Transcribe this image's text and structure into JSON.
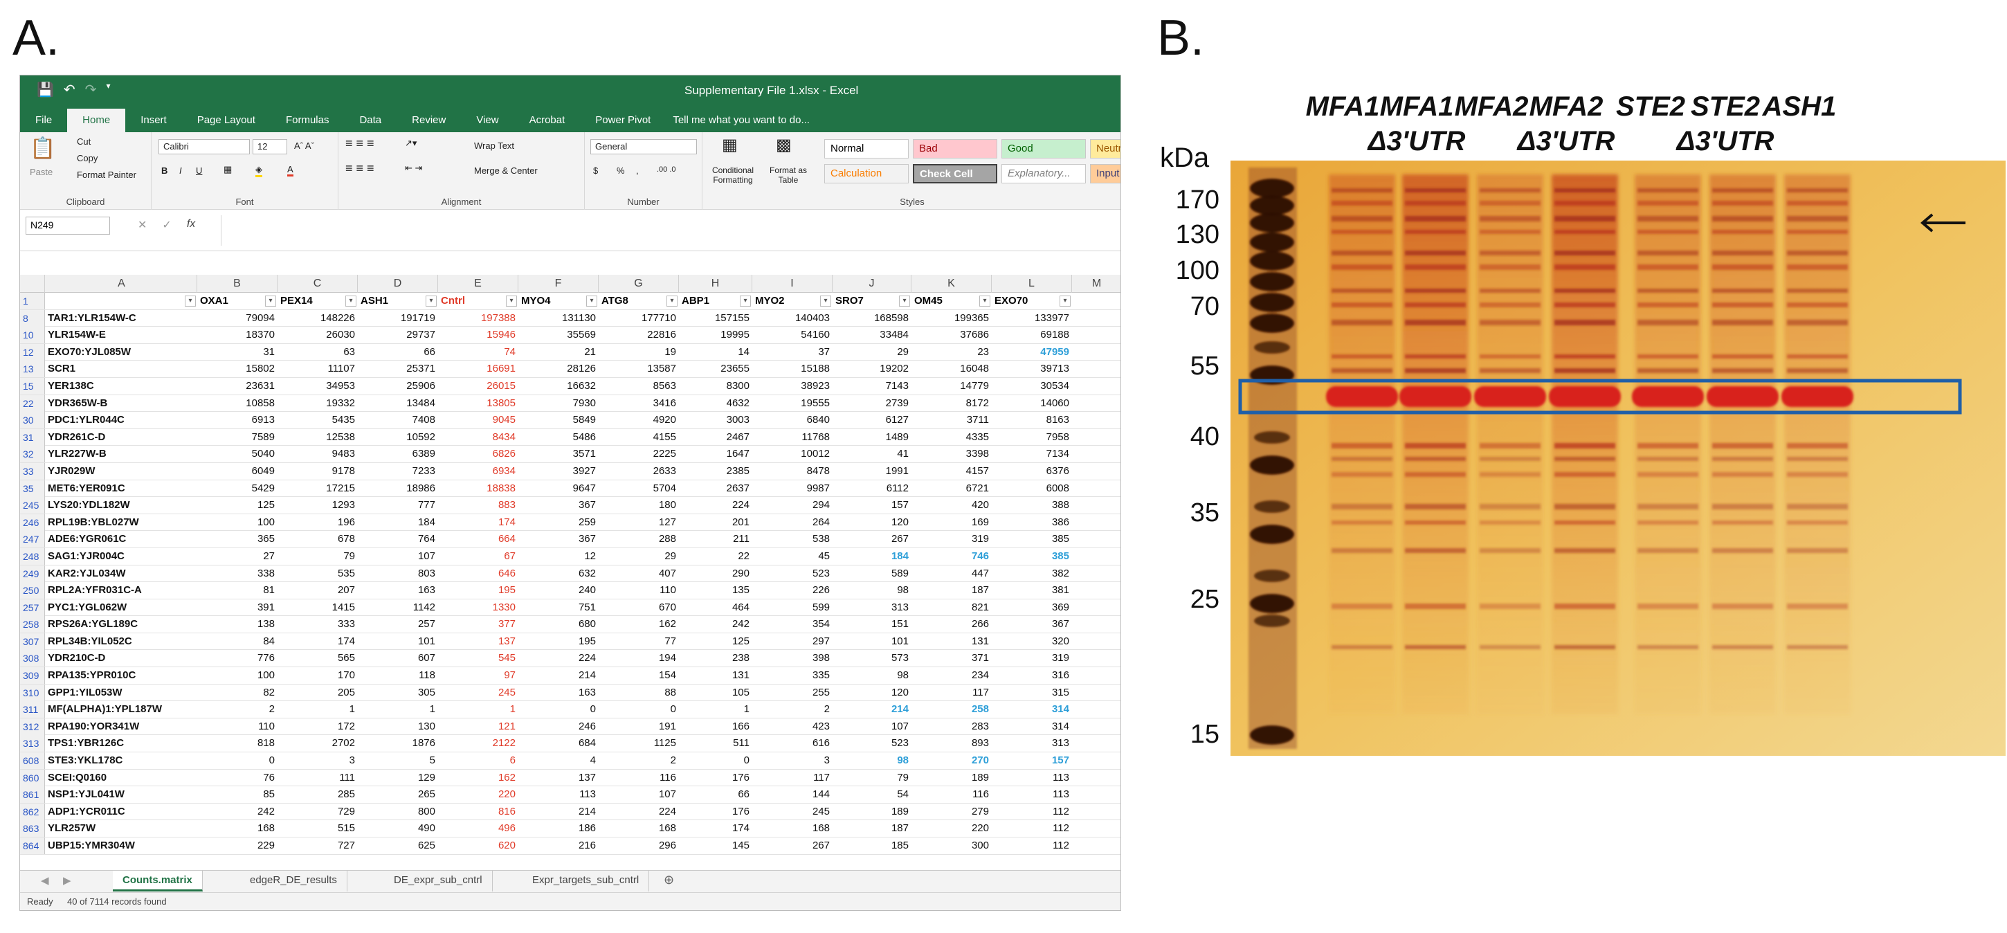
{
  "panels": {
    "a": "A.",
    "b": "B."
  },
  "excel": {
    "title": "Supplementary File 1.xlsx - Excel",
    "qat_icons": [
      "save-icon",
      "undo-icon",
      "redo-icon"
    ],
    "tabs": [
      "File",
      "Home",
      "Insert",
      "Page Layout",
      "Formulas",
      "Data",
      "Review",
      "View",
      "Acrobat",
      "Power Pivot"
    ],
    "tell_me": "Tell me what you want to do...",
    "ribbon": {
      "clipboard": {
        "paste": "Paste",
        "cut": "Cut",
        "copy": "Copy",
        "format_painter": "Format Painter",
        "label": "Clipboard"
      },
      "font": {
        "name": "Calibri",
        "size": "12",
        "label": "Font",
        "bold": "B",
        "italic": "I",
        "underline": "U"
      },
      "alignment": {
        "wrap": "Wrap Text",
        "merge": "Merge & Center",
        "label": "Alignment"
      },
      "number": {
        "format": "General",
        "dollar": "$",
        "percent": "%",
        "comma": ",",
        "label": "Number"
      },
      "cond_format": "Conditional Formatting",
      "format_table": "Format as Table",
      "styles": {
        "label": "Styles",
        "cells": [
          {
            "text": "Normal",
            "bg": "#ffffff",
            "fg": "#000000"
          },
          {
            "text": "Bad",
            "bg": "#ffc7ce",
            "fg": "#9c0006"
          },
          {
            "text": "Good",
            "bg": "#c6efce",
            "fg": "#006100"
          },
          {
            "text": "Neutral",
            "bg": "#ffeb9c",
            "fg": "#9c5700"
          },
          {
            "text": "Calculation",
            "bg": "#f2f2f2",
            "fg": "#fa7d00"
          },
          {
            "text": "Check Cell",
            "bg": "#a5a5a5",
            "fg": "#ffffff"
          },
          {
            "text": "Explanatory...",
            "bg": "#ffffff",
            "fg": "#7f7f7f"
          },
          {
            "text": "Input",
            "bg": "#ffcc99",
            "fg": "#3f3f76"
          }
        ]
      }
    },
    "name_box": "N249",
    "col_letters": [
      "A",
      "B",
      "C",
      "D",
      "E",
      "F",
      "G",
      "H",
      "I",
      "J",
      "K",
      "L",
      "M"
    ],
    "header_row": {
      "num": "1",
      "cols": [
        "",
        "OXA1",
        "PEX14",
        "ASH1",
        "Cntrl",
        "MYO4",
        "ATG8",
        "ABP1",
        "MYO2",
        "SRO7",
        "OM45",
        "EXO70"
      ]
    },
    "rows": [
      {
        "n": "8",
        "name": "TAR1:YLR154W-C",
        "v": [
          "79094",
          "148226",
          "191719",
          "197388",
          "131130",
          "177710",
          "157155",
          "140403",
          "168598",
          "199365",
          "133977"
        ]
      },
      {
        "n": "10",
        "name": "YLR154W-E",
        "v": [
          "18370",
          "26030",
          "29737",
          "15946",
          "35569",
          "22816",
          "19995",
          "54160",
          "33484",
          "37686",
          "69188"
        ]
      },
      {
        "n": "12",
        "name": "EXO70:YJL085W",
        "v": [
          "31",
          "63",
          "66",
          "74",
          "21",
          "19",
          "14",
          "37",
          "29",
          "23",
          "47959"
        ],
        "blue": [
          10
        ]
      },
      {
        "n": "13",
        "name": "SCR1",
        "v": [
          "15802",
          "11107",
          "25371",
          "16691",
          "28126",
          "13587",
          "23655",
          "15188",
          "19202",
          "16048",
          "39713"
        ]
      },
      {
        "n": "15",
        "name": "YER138C",
        "v": [
          "23631",
          "34953",
          "25906",
          "26015",
          "16632",
          "8563",
          "8300",
          "38923",
          "7143",
          "14779",
          "30534"
        ]
      },
      {
        "n": "22",
        "name": "YDR365W-B",
        "v": [
          "10858",
          "19332",
          "13484",
          "13805",
          "7930",
          "3416",
          "4632",
          "19555",
          "2739",
          "8172",
          "14060"
        ]
      },
      {
        "n": "30",
        "name": "PDC1:YLR044C",
        "v": [
          "6913",
          "5435",
          "7408",
          "9045",
          "5849",
          "4920",
          "3003",
          "6840",
          "6127",
          "3711",
          "8163"
        ]
      },
      {
        "n": "31",
        "name": "YDR261C-D",
        "v": [
          "7589",
          "12538",
          "10592",
          "8434",
          "5486",
          "4155",
          "2467",
          "11768",
          "1489",
          "4335",
          "7958"
        ]
      },
      {
        "n": "32",
        "name": "YLR227W-B",
        "v": [
          "5040",
          "9483",
          "6389",
          "6826",
          "3571",
          "2225",
          "1647",
          "10012",
          "41",
          "3398",
          "7134"
        ]
      },
      {
        "n": "33",
        "name": "YJR029W",
        "v": [
          "6049",
          "9178",
          "7233",
          "6934",
          "3927",
          "2633",
          "2385",
          "8478",
          "1991",
          "4157",
          "6376"
        ]
      },
      {
        "n": "35",
        "name": "MET6:YER091C",
        "v": [
          "5429",
          "17215",
          "18986",
          "18838",
          "9647",
          "5704",
          "2637",
          "9987",
          "6112",
          "6721",
          "6008"
        ]
      },
      {
        "n": "245",
        "name": "LYS20:YDL182W",
        "v": [
          "125",
          "1293",
          "777",
          "883",
          "367",
          "180",
          "224",
          "294",
          "157",
          "420",
          "388"
        ]
      },
      {
        "n": "246",
        "name": "RPL19B:YBL027W",
        "v": [
          "100",
          "196",
          "184",
          "174",
          "259",
          "127",
          "201",
          "264",
          "120",
          "169",
          "386"
        ]
      },
      {
        "n": "247",
        "name": "ADE6:YGR061C",
        "v": [
          "365",
          "678",
          "764",
          "664",
          "367",
          "288",
          "211",
          "538",
          "267",
          "319",
          "385"
        ]
      },
      {
        "n": "248",
        "name": "SAG1:YJR004C",
        "v": [
          "27",
          "79",
          "107",
          "67",
          "12",
          "29",
          "22",
          "45",
          "184",
          "746",
          "385"
        ],
        "blue": [
          8,
          9,
          10
        ]
      },
      {
        "n": "249",
        "name": "KAR2:YJL034W",
        "v": [
          "338",
          "535",
          "803",
          "646",
          "632",
          "407",
          "290",
          "523",
          "589",
          "447",
          "382"
        ]
      },
      {
        "n": "250",
        "name": "RPL2A:YFR031C-A",
        "v": [
          "81",
          "207",
          "163",
          "195",
          "240",
          "110",
          "135",
          "226",
          "98",
          "187",
          "381"
        ]
      },
      {
        "n": "257",
        "name": "PYC1:YGL062W",
        "v": [
          "391",
          "1415",
          "1142",
          "1330",
          "751",
          "670",
          "464",
          "599",
          "313",
          "821",
          "369"
        ]
      },
      {
        "n": "258",
        "name": "RPS26A:YGL189C",
        "v": [
          "138",
          "333",
          "257",
          "377",
          "680",
          "162",
          "242",
          "354",
          "151",
          "266",
          "367"
        ]
      },
      {
        "n": "307",
        "name": "RPL34B:YIL052C",
        "v": [
          "84",
          "174",
          "101",
          "137",
          "195",
          "77",
          "125",
          "297",
          "101",
          "131",
          "320"
        ]
      },
      {
        "n": "308",
        "name": "YDR210C-D",
        "v": [
          "776",
          "565",
          "607",
          "545",
          "224",
          "194",
          "238",
          "398",
          "573",
          "371",
          "319"
        ]
      },
      {
        "n": "309",
        "name": "RPA135:YPR010C",
        "v": [
          "100",
          "170",
          "118",
          "97",
          "214",
          "154",
          "131",
          "335",
          "98",
          "234",
          "316"
        ]
      },
      {
        "n": "310",
        "name": "GPP1:YIL053W",
        "v": [
          "82",
          "205",
          "305",
          "245",
          "163",
          "88",
          "105",
          "255",
          "120",
          "117",
          "315"
        ]
      },
      {
        "n": "311",
        "name": "MF(ALPHA)1:YPL187W",
        "v": [
          "2",
          "1",
          "1",
          "1",
          "0",
          "0",
          "1",
          "2",
          "214",
          "258",
          "314"
        ],
        "blue": [
          8,
          9,
          10
        ]
      },
      {
        "n": "312",
        "name": "RPA190:YOR341W",
        "v": [
          "110",
          "172",
          "130",
          "121",
          "246",
          "191",
          "166",
          "423",
          "107",
          "283",
          "314"
        ]
      },
      {
        "n": "313",
        "name": "TPS1:YBR126C",
        "v": [
          "818",
          "2702",
          "1876",
          "2122",
          "684",
          "1125",
          "511",
          "616",
          "523",
          "893",
          "313"
        ]
      },
      {
        "n": "608",
        "name": "STE3:YKL178C",
        "v": [
          "0",
          "3",
          "5",
          "6",
          "4",
          "2",
          "0",
          "3",
          "98",
          "270",
          "157"
        ],
        "blue": [
          8,
          9,
          10
        ]
      },
      {
        "n": "860",
        "name": "SCEI:Q0160",
        "v": [
          "76",
          "111",
          "129",
          "162",
          "137",
          "116",
          "176",
          "117",
          "79",
          "189",
          "113"
        ]
      },
      {
        "n": "861",
        "name": "NSP1:YJL041W",
        "v": [
          "85",
          "285",
          "265",
          "220",
          "113",
          "107",
          "66",
          "144",
          "54",
          "116",
          "113"
        ]
      },
      {
        "n": "862",
        "name": "ADP1:YCR011C",
        "v": [
          "242",
          "729",
          "800",
          "816",
          "214",
          "224",
          "176",
          "245",
          "189",
          "279",
          "112"
        ]
      },
      {
        "n": "863",
        "name": "YLR257W",
        "v": [
          "168",
          "515",
          "490",
          "496",
          "186",
          "168",
          "174",
          "168",
          "187",
          "220",
          "112"
        ]
      },
      {
        "n": "864",
        "name": "UBP15:YMR304W",
        "v": [
          "229",
          "727",
          "625",
          "620",
          "216",
          "296",
          "145",
          "267",
          "185",
          "300",
          "112"
        ]
      }
    ],
    "sheet_tabs": [
      "Counts.matrix",
      "edgeR_DE_results",
      "DE_expr_sub_cntrl",
      "Expr_targets_sub_cntrl"
    ],
    "status": {
      "ready": "Ready",
      "records": "40 of 7114 records found"
    }
  },
  "gel": {
    "lanes_top": [
      "MFA1",
      "MFA1",
      "MFA2",
      "MFA2",
      "STE2",
      "STE2",
      "ASH1"
    ],
    "lanes_bottom": [
      "",
      "Δ3'UTR",
      "",
      "Δ3'UTR",
      "",
      "Δ3'UTR",
      ""
    ],
    "kda": "kDa",
    "markers": [
      "170",
      "130",
      "100",
      "70",
      "55",
      "40",
      "35",
      "25",
      "15"
    ],
    "box_color": "#1f5fa8"
  }
}
